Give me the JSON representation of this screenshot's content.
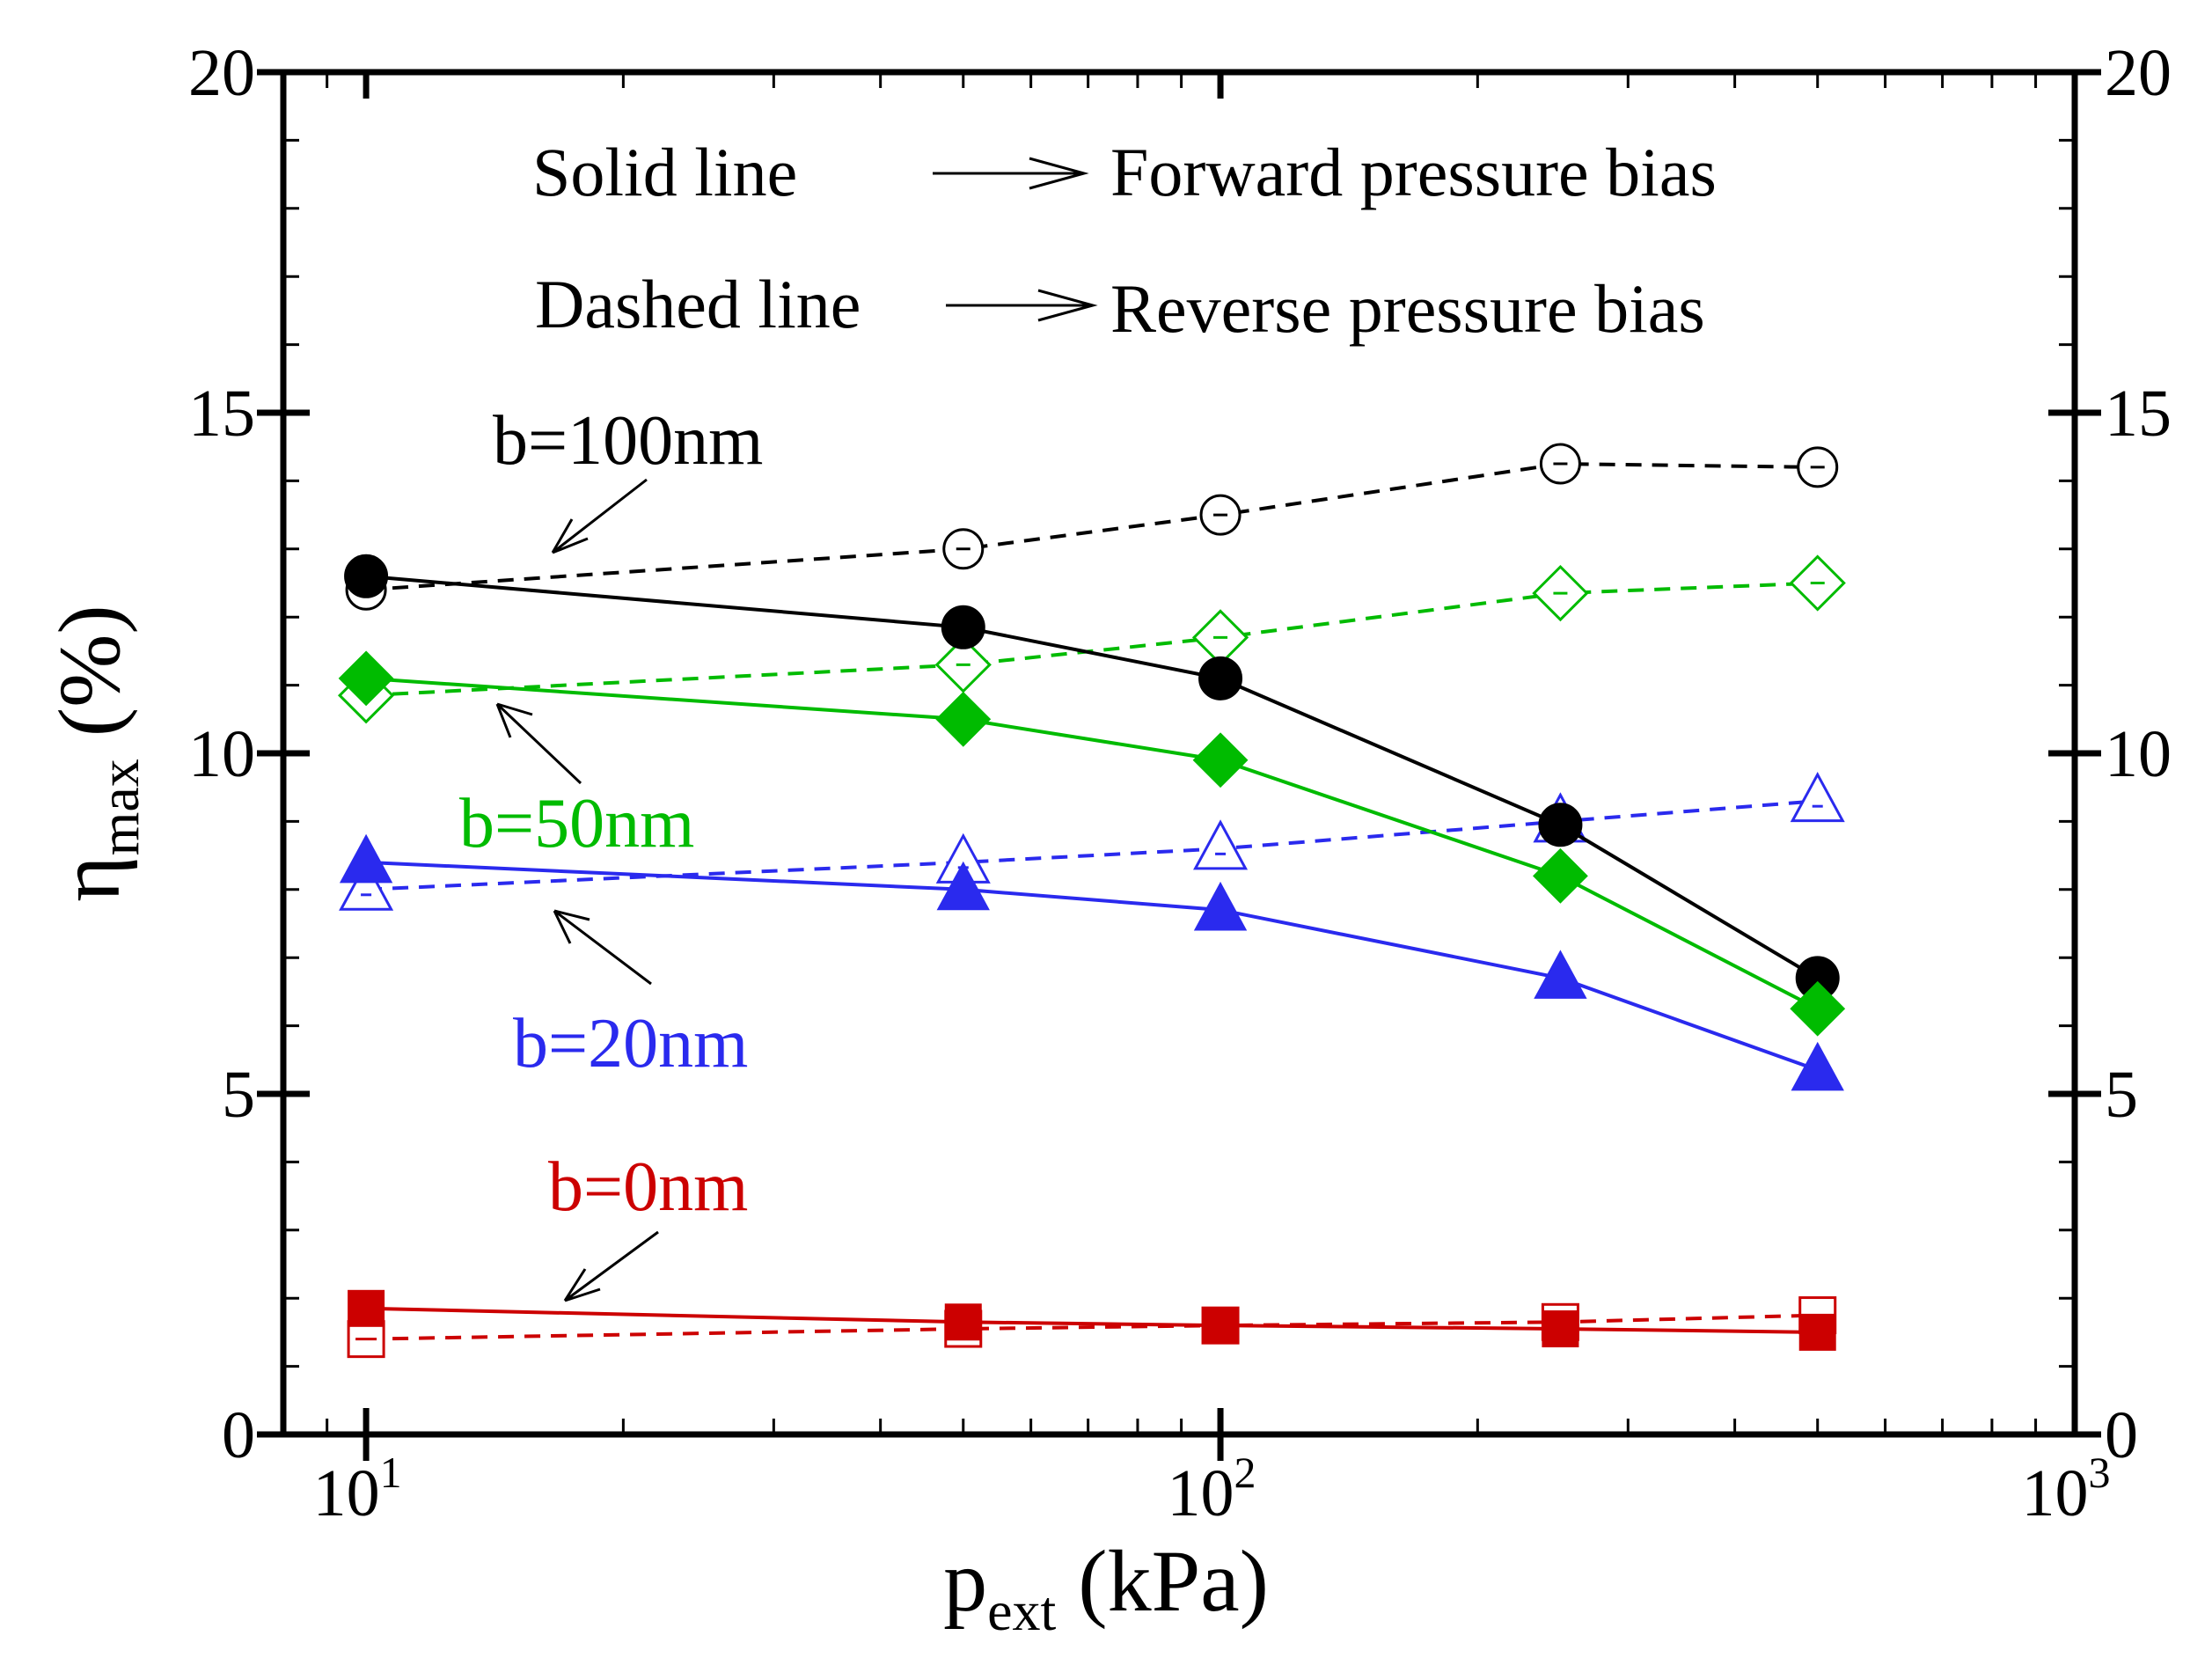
{
  "chart_data": {
    "type": "line",
    "title": "",
    "xlabel": {
      "main": "p",
      "sub": "ext",
      "unit": " (kPa)"
    },
    "ylabel": {
      "main": "η",
      "sub": "max",
      "unit": " (%)"
    },
    "xscale": "log",
    "xlim": [
      8,
      1000
    ],
    "ylim": [
      0,
      20
    ],
    "y_ticks": [
      0,
      5,
      10,
      15,
      20
    ],
    "y_tick_labels": [
      "0",
      "5",
      "10",
      "15",
      "20"
    ],
    "x_ticks": [
      10,
      100,
      1000
    ],
    "x_tick_labels": [
      {
        "base": "10",
        "exp": "1"
      },
      {
        "base": "10",
        "exp": "2"
      },
      {
        "base": "10",
        "exp": "3"
      }
    ],
    "x": [
      10,
      50,
      100,
      250,
      500
    ],
    "legend": {
      "solid_label": "Solid line",
      "solid_meaning": "Forward pressure bias",
      "dashed_label": "Dashed line",
      "dashed_meaning": "Reverse pressure bias"
    },
    "series": [
      {
        "name": "b=100nm forward",
        "group": "b100",
        "color": "#000000",
        "dash": false,
        "marker": "circle",
        "filled": true,
        "values": [
          12.6,
          11.85,
          11.1,
          8.95,
          6.7
        ]
      },
      {
        "name": "b=100nm reverse",
        "group": "b100",
        "color": "#000000",
        "dash": true,
        "marker": "circle",
        "filled": false,
        "values": [
          12.4,
          13.0,
          13.5,
          14.25,
          14.2
        ]
      },
      {
        "name": "b=50nm forward",
        "group": "b50",
        "color": "#00bb00",
        "dash": false,
        "marker": "diamond",
        "filled": true,
        "values": [
          11.1,
          10.5,
          9.9,
          8.2,
          6.25
        ]
      },
      {
        "name": "b=50nm reverse",
        "group": "b50",
        "color": "#00bb00",
        "dash": true,
        "marker": "diamond",
        "filled": false,
        "values": [
          10.85,
          11.3,
          11.7,
          12.35,
          12.5
        ]
      },
      {
        "name": "b=20nm forward",
        "group": "b20",
        "color": "#2a2aee",
        "dash": false,
        "marker": "triangle",
        "filled": true,
        "values": [
          8.4,
          8.0,
          7.7,
          6.7,
          5.35
        ]
      },
      {
        "name": "b=20nm reverse",
        "group": "b20",
        "color": "#2a2aee",
        "dash": true,
        "marker": "triangle",
        "filled": false,
        "values": [
          8.0,
          8.4,
          8.6,
          9.0,
          9.3
        ]
      },
      {
        "name": "b=0nm forward",
        "group": "b0",
        "color": "#cc0000",
        "dash": false,
        "marker": "square",
        "filled": true,
        "values": [
          1.85,
          1.65,
          1.6,
          1.55,
          1.5
        ]
      },
      {
        "name": "b=0nm reverse",
        "group": "b0",
        "color": "#cc0000",
        "dash": true,
        "marker": "square",
        "filled": false,
        "values": [
          1.4,
          1.55,
          1.6,
          1.65,
          1.75
        ]
      }
    ],
    "annotations": [
      {
        "id": "b100",
        "text": "b=100nm",
        "color": "#000000"
      },
      {
        "id": "b50",
        "text": "b=50nm",
        "color": "#00bb00"
      },
      {
        "id": "b20",
        "text": "b=20nm",
        "color": "#2a2aee"
      },
      {
        "id": "b0",
        "text": "b=0nm",
        "color": "#cc0000"
      }
    ]
  }
}
